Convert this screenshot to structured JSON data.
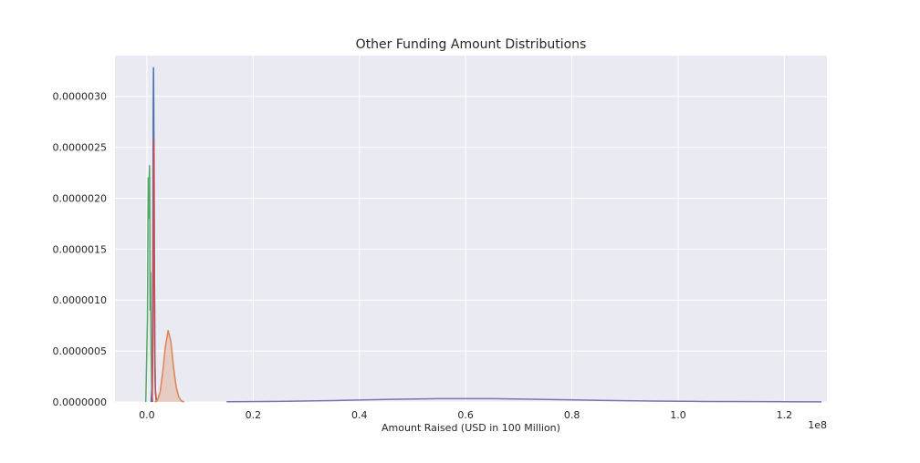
{
  "chart_data": {
    "type": "area",
    "title": "Other Funding Amount Distributions",
    "xlabel": "Amount Raised (USD in 100 Million)",
    "ylabel": "",
    "x_offset_label": "1e8",
    "xlim": [
      -6000000,
      128000000
    ],
    "ylim": [
      0,
      3.4e-06
    ],
    "x_ticks": [
      0,
      20000000,
      40000000,
      60000000,
      80000000,
      100000000,
      120000000
    ],
    "x_tick_labels": [
      "0.0",
      "0.2",
      "0.4",
      "0.6",
      "0.8",
      "1.0",
      "1.2"
    ],
    "y_ticks": [
      0,
      5e-07,
      1e-06,
      1.5e-06,
      2e-06,
      2.5e-06,
      3e-06
    ],
    "y_tick_labels": [
      "0.0000000",
      "0.0000005",
      "0.0000010",
      "0.0000015",
      "0.0000020",
      "0.0000025",
      "0.0000030"
    ],
    "grid": true,
    "background": "#eaeaf2",
    "series": [
      {
        "color": "#4c72b0",
        "fill": false,
        "x": [
          800000,
          1000000,
          1100000,
          1200000,
          1250000,
          1300000,
          1400000,
          1500000,
          1600000,
          1800000
        ],
        "y": [
          0,
          2e-07,
          1e-06,
          2.9e-06,
          3.28e-06,
          2.9e-06,
          1.5e-06,
          5e-07,
          1.2e-07,
          0
        ]
      },
      {
        "color": "#55a868",
        "fill": false,
        "x": [
          -200000,
          100000,
          250000,
          300000,
          400000,
          500000,
          550000,
          600000,
          700000,
          800000,
          900000,
          1000000,
          1100000
        ],
        "y": [
          0,
          8e-07,
          2.2e-06,
          1.8e-06,
          2.1e-06,
          2.32e-06,
          2e-06,
          9e-07,
          1.27e-06,
          5e-07,
          2e-07,
          5e-08,
          0
        ]
      },
      {
        "color": "#c44e52",
        "fill": false,
        "x": [
          1000000,
          1100000,
          1200000,
          1300000,
          1350000,
          1400000,
          1500000,
          1600000,
          1800000
        ],
        "y": [
          0,
          4e-07,
          1.5e-06,
          2.58e-06,
          2.4e-06,
          1.5e-06,
          4e-07,
          1e-07,
          0
        ]
      },
      {
        "color": "#dd8452",
        "fill": true,
        "x": [
          1500000,
          2000000,
          2500000,
          3000000,
          3500000,
          4000000,
          4500000,
          5000000,
          5500000,
          6000000,
          6500000,
          7000000
        ],
        "y": [
          0,
          2e-08,
          1e-07,
          3e-07,
          5.5e-07,
          7e-07,
          6e-07,
          3.5e-07,
          1.5e-07,
          5e-08,
          1e-08,
          0
        ]
      },
      {
        "color": "#8172b2",
        "fill": false,
        "x": [
          15000000,
          25000000,
          35000000,
          45000000,
          55000000,
          65000000,
          75000000,
          85000000,
          95000000,
          105000000,
          115000000,
          127000000
        ],
        "y": [
          2e-09,
          6e-09,
          1.4e-08,
          2.5e-08,
          3.2e-08,
          3.2e-08,
          2.5e-08,
          1.6e-08,
          9e-09,
          5e-09,
          3e-09,
          1e-09
        ]
      }
    ]
  }
}
